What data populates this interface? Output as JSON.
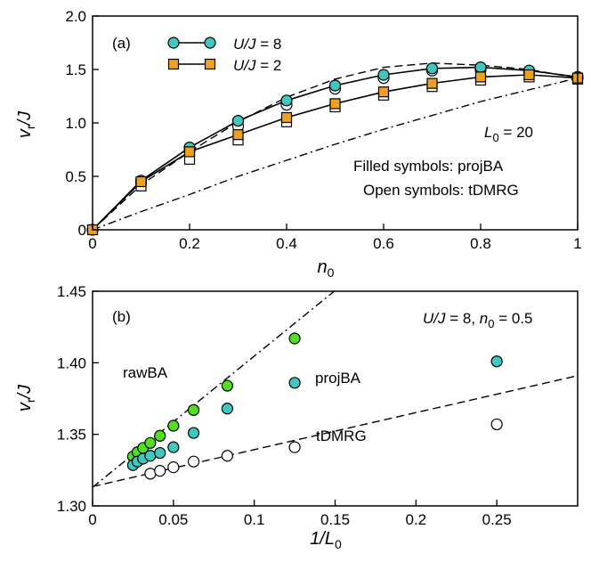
{
  "chart_data": [
    {
      "panel": "(a)",
      "type": "line",
      "xlabel_main": "n",
      "xlabel_sub": "0",
      "ylabel_main": "v",
      "ylabel_sub": "r",
      "ylabel_tail": "/J",
      "xlim": [
        0,
        1
      ],
      "ylim": [
        0,
        2.0
      ],
      "xticks": [
        0,
        0.2,
        0.4,
        0.6,
        0.8,
        1
      ],
      "xtick_labels": [
        "0",
        "0.2",
        "0.4",
        "0.6",
        "0.8",
        "1"
      ],
      "yticks": [
        0,
        0.5,
        1.0,
        1.5,
        2.0
      ],
      "ytick_labels": [
        "0",
        "0.5",
        "1.0",
        "1.5",
        "2.0"
      ],
      "annotations": {
        "l0_main": "L",
        "l0_sub": "0",
        "l0_tail": " = 20",
        "filled": "Filled symbols: projBA",
        "open": "Open symbols: tDMRG"
      },
      "legend": [
        {
          "pre": "U/J",
          "post": " = 8",
          "marker": "circle",
          "color": "#40c8c0"
        },
        {
          "pre": "U/J",
          "post": " = 2",
          "marker": "square",
          "color": "#f0a020"
        }
      ],
      "series": [
        {
          "key": "u8_projBA",
          "marker": "circle",
          "fill": "#40c8c0",
          "connect": true,
          "x": [
            0,
            0.1,
            0.2,
            0.3,
            0.4,
            0.5,
            0.6,
            0.7,
            0.8,
            0.9,
            1.0
          ],
          "y": [
            0,
            0.46,
            0.77,
            1.02,
            1.21,
            1.35,
            1.45,
            1.51,
            1.52,
            1.49,
            1.43
          ]
        },
        {
          "key": "u8_tDMRG",
          "marker": "circle",
          "fill": "none",
          "connect": false,
          "x": [
            0.1,
            0.2,
            0.3,
            0.4,
            0.5,
            0.6,
            0.7,
            0.8,
            0.9,
            1.0
          ],
          "y": [
            0.44,
            0.74,
            0.97,
            1.17,
            1.32,
            1.42,
            1.49,
            1.5,
            1.48,
            1.42
          ]
        },
        {
          "key": "u2_projBA",
          "marker": "square",
          "fill": "#f0a020",
          "connect": true,
          "x": [
            0,
            0.1,
            0.2,
            0.3,
            0.4,
            0.5,
            0.6,
            0.7,
            0.8,
            0.9,
            1.0
          ],
          "y": [
            0,
            0.45,
            0.73,
            0.89,
            1.05,
            1.18,
            1.29,
            1.37,
            1.43,
            1.45,
            1.42
          ]
        },
        {
          "key": "u2_tDMRG",
          "marker": "square",
          "fill": "none",
          "connect": false,
          "x": [
            0.1,
            0.2,
            0.3,
            0.4,
            0.5,
            0.6,
            0.7,
            0.8,
            0.9,
            1.0
          ],
          "y": [
            0.41,
            0.66,
            0.84,
            1.01,
            1.15,
            1.26,
            1.34,
            1.4,
            1.43,
            1.41
          ]
        }
      ],
      "curves": [
        {
          "style": "dashed",
          "x": [
            0,
            0.1,
            0.2,
            0.3,
            0.4,
            0.5,
            0.6,
            0.7,
            0.8,
            0.9,
            1.0
          ],
          "y": [
            0,
            0.42,
            0.73,
            1.01,
            1.24,
            1.41,
            1.52,
            1.56,
            1.54,
            1.5,
            1.42
          ]
        },
        {
          "style": "dashdot",
          "x": [
            0,
            0.1,
            0.2,
            0.3,
            0.4,
            0.5,
            0.6,
            0.7,
            0.8,
            0.9,
            1.0
          ],
          "y": [
            0,
            0.17,
            0.33,
            0.5,
            0.65,
            0.8,
            0.94,
            1.07,
            1.2,
            1.31,
            1.42
          ]
        }
      ]
    },
    {
      "panel": "(b)",
      "type": "scatter",
      "xlabel_main": "1/L",
      "xlabel_sub": "0",
      "ylabel_main": "v",
      "ylabel_sub": "r",
      "ylabel_tail": "/J",
      "xlim": [
        0,
        0.3
      ],
      "ylim": [
        1.3,
        1.45
      ],
      "xticks": [
        0,
        0.05,
        0.1,
        0.15,
        0.2,
        0.25
      ],
      "xtick_labels": [
        "0",
        "0.05",
        "0.1",
        "0.15",
        "0.2",
        "0.25"
      ],
      "yticks": [
        1.3,
        1.35,
        1.4,
        1.45
      ],
      "ytick_labels": [
        "1.30",
        "1.35",
        "1.40",
        "1.45"
      ],
      "annotations": {
        "params_a": "U/J",
        "params_b": " = 8, ",
        "params_c": "n",
        "params_sub": "0",
        "params_d": " = 0.5",
        "rawBA": "rawBA",
        "projBA": "projBA",
        "tDMRG": "tDMRG"
      },
      "series": [
        {
          "key": "rawBA",
          "marker": "circle",
          "fill": "#50e020",
          "x": [
            0.025,
            0.02778,
            0.03125,
            0.03571,
            0.04167,
            0.05,
            0.0625,
            0.08333,
            0.125
          ],
          "y": [
            1.3345,
            1.3375,
            1.3405,
            1.344,
            1.349,
            1.356,
            1.367,
            1.384,
            1.417
          ]
        },
        {
          "key": "projBA",
          "marker": "circle",
          "fill": "#40c8c0",
          "x": [
            0.025,
            0.02778,
            0.03125,
            0.03571,
            0.04167,
            0.05,
            0.0625,
            0.08333,
            0.125,
            0.25
          ],
          "y": [
            1.3285,
            1.331,
            1.333,
            1.335,
            1.337,
            1.341,
            1.351,
            1.368,
            1.386,
            1.401
          ]
        },
        {
          "key": "tDMRG",
          "marker": "circle",
          "fill": "none",
          "x": [
            0.03571,
            0.04167,
            0.05,
            0.0625,
            0.08333,
            0.125,
            0.25
          ],
          "y": [
            1.3225,
            1.3245,
            1.327,
            1.331,
            1.335,
            1.341,
            1.357
          ]
        }
      ],
      "fits": [
        {
          "style": "dashdot",
          "x": [
            0,
            0.15
          ],
          "y": [
            1.313,
            1.4505
          ]
        },
        {
          "style": "dashed",
          "x": [
            0,
            0.3
          ],
          "y": [
            1.3135,
            1.391
          ]
        }
      ]
    }
  ]
}
